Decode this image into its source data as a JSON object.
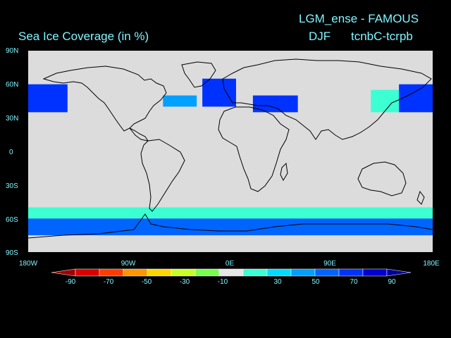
{
  "header": {
    "run_title": "LGM_ense - FAMOUS",
    "variable_title": "Sea Ice Coverage (in %)",
    "season": "DJF",
    "experiment": "tcnbC-tcrpb"
  },
  "map": {
    "land_color": "#dcdcdc",
    "coast_color": "#000000",
    "lat_labels": [
      "90N",
      "60N",
      "30N",
      "0",
      "30S",
      "60S",
      "90S"
    ],
    "lon_labels": [
      "180W",
      "90W",
      "0E",
      "90E",
      "180E"
    ]
  },
  "colorbar": {
    "labels": [
      "-90",
      "-70",
      "-50",
      "-30",
      "-10",
      "30",
      "50",
      "70",
      "90"
    ],
    "colors": [
      "#a00000",
      "#dc0000",
      "#ff3c00",
      "#ff9600",
      "#ffd700",
      "#c8ff28",
      "#78ff50",
      "#e6e6e6",
      "#3cffd2",
      "#00dcff",
      "#00a0ff",
      "#0064ff",
      "#0032ff",
      "#0000d2",
      "#00009b"
    ]
  },
  "chart_data": {
    "type": "heatmap",
    "title": "Sea Ice Coverage (in %)",
    "units": "%",
    "x_range": [
      -180,
      180
    ],
    "y_range": [
      -90,
      90
    ],
    "levels": [
      -90,
      -70,
      -50,
      -30,
      -10,
      10,
      30,
      50,
      70,
      90
    ],
    "regions": [
      {
        "lon": [
          -180,
          -145
        ],
        "lat": [
          35,
          60
        ],
        "value": 70
      },
      {
        "lon": [
          -60,
          -30
        ],
        "lat": [
          40,
          50
        ],
        "value": 50
      },
      {
        "lon": [
          -25,
          5
        ],
        "lat": [
          40,
          65
        ],
        "value": 75
      },
      {
        "lon": [
          20,
          60
        ],
        "lat": [
          35,
          50
        ],
        "value": 70
      },
      {
        "lon": [
          125,
          150
        ],
        "lat": [
          35,
          55
        ],
        "value": 35
      },
      {
        "lon": [
          150,
          180
        ],
        "lat": [
          35,
          60
        ],
        "value": 75
      },
      {
        "lon": [
          -180,
          180
        ],
        "lat": [
          -60,
          -50
        ],
        "value": 25
      },
      {
        "lon": [
          -180,
          180
        ],
        "lat": [
          -75,
          -60
        ],
        "value": 65
      }
    ]
  }
}
